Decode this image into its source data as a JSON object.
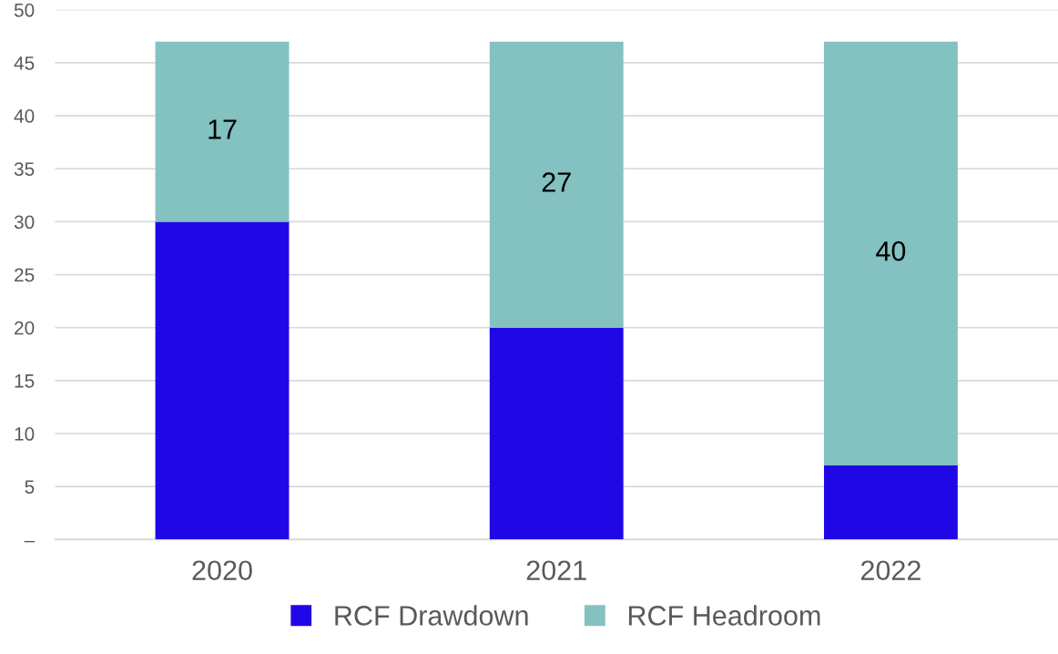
{
  "chart_data": {
    "type": "bar",
    "stacked": true,
    "categories": [
      "2020",
      "2021",
      "2022"
    ],
    "series": [
      {
        "name": "RCF Drawdown",
        "color": "#2008e6",
        "values": [
          30,
          20,
          7
        ]
      },
      {
        "name": "RCF Headroom",
        "color": "#84c1c1",
        "values": [
          17,
          27,
          40
        ],
        "value_labels": [
          "17",
          "27",
          "40"
        ]
      }
    ],
    "ylim": [
      0,
      50
    ],
    "yticks": [
      {
        "value": 0,
        "label": "–"
      },
      5,
      10,
      15,
      20,
      25,
      30,
      35,
      40,
      45,
      50
    ],
    "grid": "y",
    "legend": "bottom"
  }
}
